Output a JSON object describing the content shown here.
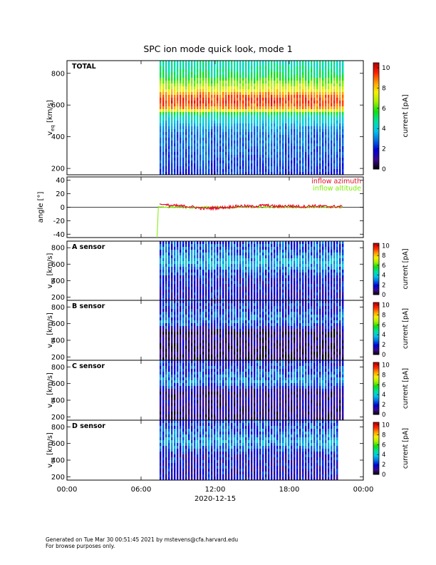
{
  "title": "SPC ion mode quick look, mode 1",
  "footer": {
    "line1": "Generated on Tue Mar 30 00:51:45 2021 by mstevens@cfa.harvard.edu",
    "line2": "For browse purposes only."
  },
  "colors": {
    "azimuth": "#e0102a",
    "altitude": "#7cf000",
    "colormap": [
      "#000000",
      "#3a0a8a",
      "#0000d8",
      "#0070e0",
      "#00c8e8",
      "#00e0a0",
      "#10e010",
      "#a8f000",
      "#f8f000",
      "#ff9800",
      "#ff2000",
      "#b00000"
    ]
  },
  "chart_data": [
    {
      "type": "heatmap",
      "id": "total",
      "panel_label": "TOTAL",
      "ylabel_main": "v",
      "ylabel_sub": "eq",
      "ylabel_unit": " [km/s]",
      "yticks": [
        200,
        400,
        600,
        800
      ],
      "ylim": [
        160,
        880
      ],
      "colorbar": {
        "label": "current [pA]",
        "range": [
          0,
          10.5
        ],
        "ticks": [
          0,
          2,
          4,
          6,
          8,
          10
        ]
      },
      "data_start_hour": 7.5,
      "data_end_hour": 22.3,
      "profile": [
        {
          "v": 180,
          "c": 2.2
        },
        {
          "v": 260,
          "c": 2.5
        },
        {
          "v": 340,
          "c": 2.7
        },
        {
          "v": 420,
          "c": 2.8
        },
        {
          "v": 460,
          "c": 3.2
        },
        {
          "v": 500,
          "c": 4.0
        },
        {
          "v": 540,
          "c": 4.8
        },
        {
          "v": 580,
          "c": 8.6
        },
        {
          "v": 620,
          "c": 9.5
        },
        {
          "v": 660,
          "c": 9.0
        },
        {
          "v": 700,
          "c": 7.2
        },
        {
          "v": 740,
          "c": 6.4
        },
        {
          "v": 790,
          "c": 5.2
        },
        {
          "v": 850,
          "c": 4.6
        }
      ]
    },
    {
      "type": "line",
      "id": "angle",
      "ylabel": "angle [°]",
      "yticks": [
        -40,
        -20,
        0,
        20,
        40
      ],
      "ylim": [
        -45,
        45
      ],
      "legend": [
        "inflow azimuth",
        "inflow altitude"
      ],
      "legend_position": "top-right",
      "series": [
        {
          "name": "inflow azimuth",
          "x": [
            7.5,
            7.7,
            8.0,
            9.0,
            10.0,
            11.0,
            12.0,
            13.0,
            14.0,
            15.0,
            16.0,
            17.0,
            18.0,
            19.0,
            20.0,
            21.0,
            22.3
          ],
          "y": [
            5,
            4,
            3,
            2,
            1,
            -2,
            -1,
            0,
            2,
            1,
            3,
            1,
            2,
            1,
            2,
            1,
            1
          ]
        },
        {
          "name": "inflow altitude",
          "x": [
            7.3,
            7.4,
            7.5,
            8.0,
            9.0,
            10.0,
            11.0,
            12.0,
            13.0,
            14.0,
            15.0,
            16.0,
            17.0,
            18.0,
            19.0,
            20.0,
            21.0,
            22.3
          ],
          "y": [
            -45,
            1,
            1,
            0,
            0,
            -1,
            0,
            0,
            -1,
            0,
            0,
            0,
            0,
            0,
            -1,
            0,
            0,
            0
          ]
        }
      ]
    },
    {
      "type": "heatmap",
      "id": "sensor_a",
      "panel_label": "A sensor",
      "ylabel_main": "v",
      "ylabel_sub": "eq",
      "ylabel_unit": " [km/s]",
      "yticks": [
        200,
        400,
        600,
        800
      ],
      "ylim": [
        160,
        880
      ],
      "colorbar": {
        "label": "current [pA]",
        "range": [
          0,
          10.5
        ],
        "ticks": [
          0,
          2,
          4,
          6,
          8,
          10
        ]
      },
      "data_start_hour": 7.5,
      "data_end_hour": 22.3,
      "profile": [
        {
          "v": 180,
          "c": 1.8
        },
        {
          "v": 300,
          "c": 1.9
        },
        {
          "v": 420,
          "c": 1.9
        },
        {
          "v": 500,
          "c": 2.4
        },
        {
          "v": 560,
          "c": 3.0
        },
        {
          "v": 620,
          "c": 3.6
        },
        {
          "v": 680,
          "c": 3.1
        },
        {
          "v": 760,
          "c": 2.6
        },
        {
          "v": 850,
          "c": 2.3
        }
      ]
    },
    {
      "type": "heatmap",
      "id": "sensor_b",
      "panel_label": "B sensor",
      "ylabel_main": "v",
      "ylabel_sub": "eq",
      "ylabel_unit": " [km/s]",
      "yticks": [
        200,
        400,
        600,
        800
      ],
      "ylim": [
        160,
        880
      ],
      "colorbar": {
        "label": "current [pA]",
        "range": [
          0,
          10.5
        ],
        "ticks": [
          0,
          2,
          4,
          6,
          8,
          10
        ]
      },
      "data_start_hour": 7.5,
      "data_end_hour": 22.3,
      "profile": [
        {
          "v": 180,
          "c": 0.6
        },
        {
          "v": 300,
          "c": 0.8
        },
        {
          "v": 420,
          "c": 1.0
        },
        {
          "v": 500,
          "c": 0.7
        },
        {
          "v": 560,
          "c": 1.9
        },
        {
          "v": 620,
          "c": 2.8
        },
        {
          "v": 680,
          "c": 2.6
        },
        {
          "v": 760,
          "c": 2.2
        },
        {
          "v": 850,
          "c": 2.0
        }
      ]
    },
    {
      "type": "heatmap",
      "id": "sensor_c",
      "panel_label": "C sensor",
      "ylabel_main": "v",
      "ylabel_sub": "eq",
      "ylabel_unit": " [km/s]",
      "yticks": [
        200,
        400,
        600,
        800
      ],
      "ylim": [
        160,
        880
      ],
      "colorbar": {
        "label": "current [pA]",
        "range": [
          0,
          10.5
        ],
        "ticks": [
          0,
          2,
          4,
          6,
          8,
          10
        ]
      },
      "data_start_hour": 7.5,
      "data_end_hour": 22.3,
      "profile": [
        {
          "v": 180,
          "c": 0.9
        },
        {
          "v": 300,
          "c": 1.1
        },
        {
          "v": 420,
          "c": 1.2
        },
        {
          "v": 500,
          "c": 0.9
        },
        {
          "v": 560,
          "c": 2.2
        },
        {
          "v": 620,
          "c": 3.1
        },
        {
          "v": 680,
          "c": 2.8
        },
        {
          "v": 760,
          "c": 2.4
        },
        {
          "v": 850,
          "c": 2.1
        }
      ]
    },
    {
      "type": "heatmap",
      "id": "sensor_d",
      "panel_label": "D sensor",
      "ylabel_main": "v",
      "ylabel_sub": "eq",
      "ylabel_unit": " [km/s]",
      "yticks": [
        200,
        400,
        600,
        800
      ],
      "ylim": [
        160,
        880
      ],
      "colorbar": {
        "label": "current [pA]",
        "range": [
          0,
          10.5
        ],
        "ticks": [
          0,
          2,
          4,
          6,
          8,
          10
        ]
      },
      "data_start_hour": 7.5,
      "data_end_hour": 22.0,
      "profile": [
        {
          "v": 180,
          "c": 1.6
        },
        {
          "v": 300,
          "c": 1.7
        },
        {
          "v": 420,
          "c": 1.8
        },
        {
          "v": 500,
          "c": 2.1
        },
        {
          "v": 560,
          "c": 2.8
        },
        {
          "v": 620,
          "c": 3.3
        },
        {
          "v": 680,
          "c": 3.0
        },
        {
          "v": 760,
          "c": 2.5
        },
        {
          "v": 850,
          "c": 2.3
        }
      ]
    }
  ],
  "xaxis": {
    "xlim": [
      0,
      24
    ],
    "ticks": [
      0,
      6,
      12,
      18,
      24
    ],
    "tick_labels": [
      "00:00",
      "06:00",
      "12:00",
      "18:00",
      "00:00"
    ],
    "date_label": "2020-12-15"
  }
}
